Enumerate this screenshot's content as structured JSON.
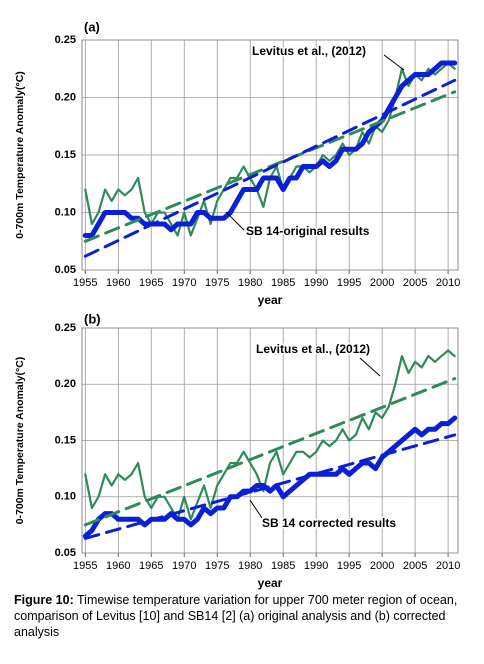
{
  "chart_data": [
    {
      "type": "line",
      "title": "(a)",
      "ylabel": "0-700m Temperature Anomaly(°C)",
      "xlabel": "year",
      "xlim": [
        1954.5,
        2011.5
      ],
      "ylim": [
        0.05,
        0.25
      ],
      "xticks": [
        1955,
        1960,
        1965,
        1970,
        1975,
        1980,
        1985,
        1990,
        1995,
        2000,
        2005,
        2010
      ],
      "yticks": [
        {
          "value": 0.05,
          "label": "0.05"
        },
        {
          "value": 0.1,
          "label": "0.10"
        },
        0.15,
        {
          "value": 0.2,
          "label": "0.20"
        },
        0.25
      ],
      "grid": true,
      "x": [
        1955,
        1956,
        1957,
        1958,
        1959,
        1960,
        1961,
        1962,
        1963,
        1964,
        1965,
        1966,
        1967,
        1968,
        1969,
        1970,
        1971,
        1972,
        1973,
        1974,
        1975,
        1976,
        1977,
        1978,
        1979,
        1980,
        1981,
        1982,
        1983,
        1984,
        1985,
        1986,
        1987,
        1988,
        1989,
        1990,
        1991,
        1992,
        1993,
        1994,
        1995,
        1996,
        1997,
        1998,
        1999,
        2000,
        2001,
        2002,
        2003,
        2004,
        2005,
        2006,
        2007,
        2008,
        2009,
        2010,
        2011
      ],
      "series": [
        {
          "name": "Levitus et al., (2012)",
          "color": "#2e8b57",
          "style": "thin",
          "values": [
            0.12,
            0.09,
            0.1,
            0.12,
            0.11,
            0.12,
            0.115,
            0.12,
            0.13,
            0.1,
            0.09,
            0.1,
            0.1,
            0.09,
            0.08,
            0.1,
            0.08,
            0.095,
            0.11,
            0.09,
            0.11,
            0.12,
            0.13,
            0.13,
            0.14,
            0.13,
            0.12,
            0.105,
            0.13,
            0.14,
            0.12,
            0.13,
            0.14,
            0.14,
            0.135,
            0.14,
            0.15,
            0.145,
            0.15,
            0.16,
            0.15,
            0.155,
            0.17,
            0.16,
            0.175,
            0.17,
            0.18,
            0.2,
            0.225,
            0.21,
            0.22,
            0.215,
            0.225,
            0.22,
            0.225,
            0.23,
            0.225
          ]
        },
        {
          "name": "SB 14-original results",
          "color": "#0a1fd6",
          "style": "thick",
          "values": [
            0.08,
            0.08,
            0.09,
            0.1,
            0.1,
            0.1,
            0.1,
            0.095,
            0.095,
            0.09,
            0.09,
            0.09,
            0.09,
            0.085,
            0.09,
            0.09,
            0.09,
            0.1,
            0.1,
            0.095,
            0.095,
            0.095,
            0.1,
            0.11,
            0.12,
            0.12,
            0.12,
            0.13,
            0.13,
            0.13,
            0.12,
            0.13,
            0.13,
            0.14,
            0.14,
            0.14,
            0.145,
            0.14,
            0.145,
            0.155,
            0.155,
            0.155,
            0.16,
            0.17,
            0.175,
            0.18,
            0.19,
            0.2,
            0.21,
            0.215,
            0.22,
            0.22,
            0.22,
            0.225,
            0.23,
            0.23,
            0.23
          ]
        },
        {
          "color": "#2e8b57",
          "style": "dashed",
          "x": [
            1955,
            2011
          ],
          "values": [
            0.075,
            0.205
          ]
        },
        {
          "color": "#0a1fd6",
          "style": "dashed",
          "x": [
            1955,
            2011
          ],
          "values": [
            0.062,
            0.215
          ]
        }
      ]
    },
    {
      "type": "line",
      "title": "(b)",
      "ylabel": "0-700m Temperature Anomaly(°C)",
      "xlabel": "year",
      "xlim": [
        1954.5,
        2011.5
      ],
      "ylim": [
        0.05,
        0.25
      ],
      "xticks": [
        1955,
        1960,
        1965,
        1970,
        1975,
        1980,
        1985,
        1990,
        1995,
        2000,
        2005,
        2010
      ],
      "yticks": [
        {
          "value": 0.05,
          "label": "0.05"
        },
        {
          "value": 0.1,
          "label": "0.10"
        },
        0.15,
        {
          "value": 0.2,
          "label": "0.20"
        },
        0.25
      ],
      "grid": true,
      "x": [
        1955,
        1956,
        1957,
        1958,
        1959,
        1960,
        1961,
        1962,
        1963,
        1964,
        1965,
        1966,
        1967,
        1968,
        1969,
        1970,
        1971,
        1972,
        1973,
        1974,
        1975,
        1976,
        1977,
        1978,
        1979,
        1980,
        1981,
        1982,
        1983,
        1984,
        1985,
        1986,
        1987,
        1988,
        1989,
        1990,
        1991,
        1992,
        1993,
        1994,
        1995,
        1996,
        1997,
        1998,
        1999,
        2000,
        2001,
        2002,
        2003,
        2004,
        2005,
        2006,
        2007,
        2008,
        2009,
        2010,
        2011
      ],
      "series": [
        {
          "name": "Levitus et al., (2012)",
          "color": "#2e8b57",
          "style": "thin",
          "values": [
            0.12,
            0.09,
            0.1,
            0.12,
            0.11,
            0.12,
            0.115,
            0.12,
            0.13,
            0.1,
            0.09,
            0.1,
            0.1,
            0.09,
            0.08,
            0.1,
            0.08,
            0.095,
            0.11,
            0.09,
            0.11,
            0.12,
            0.13,
            0.13,
            0.14,
            0.13,
            0.12,
            0.105,
            0.13,
            0.14,
            0.12,
            0.13,
            0.14,
            0.14,
            0.135,
            0.14,
            0.15,
            0.145,
            0.15,
            0.16,
            0.15,
            0.155,
            0.17,
            0.16,
            0.175,
            0.17,
            0.18,
            0.2,
            0.225,
            0.21,
            0.22,
            0.215,
            0.225,
            0.22,
            0.225,
            0.23,
            0.225
          ]
        },
        {
          "name": "SB 14 corrected results",
          "color": "#0a1fd6",
          "style": "thick",
          "values": [
            0.065,
            0.07,
            0.08,
            0.085,
            0.085,
            0.08,
            0.08,
            0.08,
            0.08,
            0.075,
            0.08,
            0.08,
            0.08,
            0.085,
            0.08,
            0.08,
            0.075,
            0.08,
            0.09,
            0.085,
            0.09,
            0.09,
            0.1,
            0.1,
            0.105,
            0.105,
            0.11,
            0.11,
            0.105,
            0.11,
            0.1,
            0.105,
            0.11,
            0.115,
            0.12,
            0.12,
            0.12,
            0.12,
            0.12,
            0.125,
            0.12,
            0.125,
            0.13,
            0.13,
            0.125,
            0.135,
            0.14,
            0.145,
            0.15,
            0.155,
            0.16,
            0.155,
            0.16,
            0.16,
            0.165,
            0.165,
            0.17
          ]
        },
        {
          "color": "#2e8b57",
          "style": "dashed",
          "x": [
            1955,
            2011
          ],
          "values": [
            0.075,
            0.205
          ]
        },
        {
          "color": "#0a1fd6",
          "style": "dashed",
          "x": [
            1955,
            2011
          ],
          "values": [
            0.063,
            0.155
          ]
        }
      ]
    }
  ],
  "caption": {
    "label": "Figure 10:",
    "text": "Timewise temperature variation for upper 700 meter region of ocean, comparison of Levitus [10] and SB14 [2] (a) original analysis and (b) corrected analysis"
  }
}
